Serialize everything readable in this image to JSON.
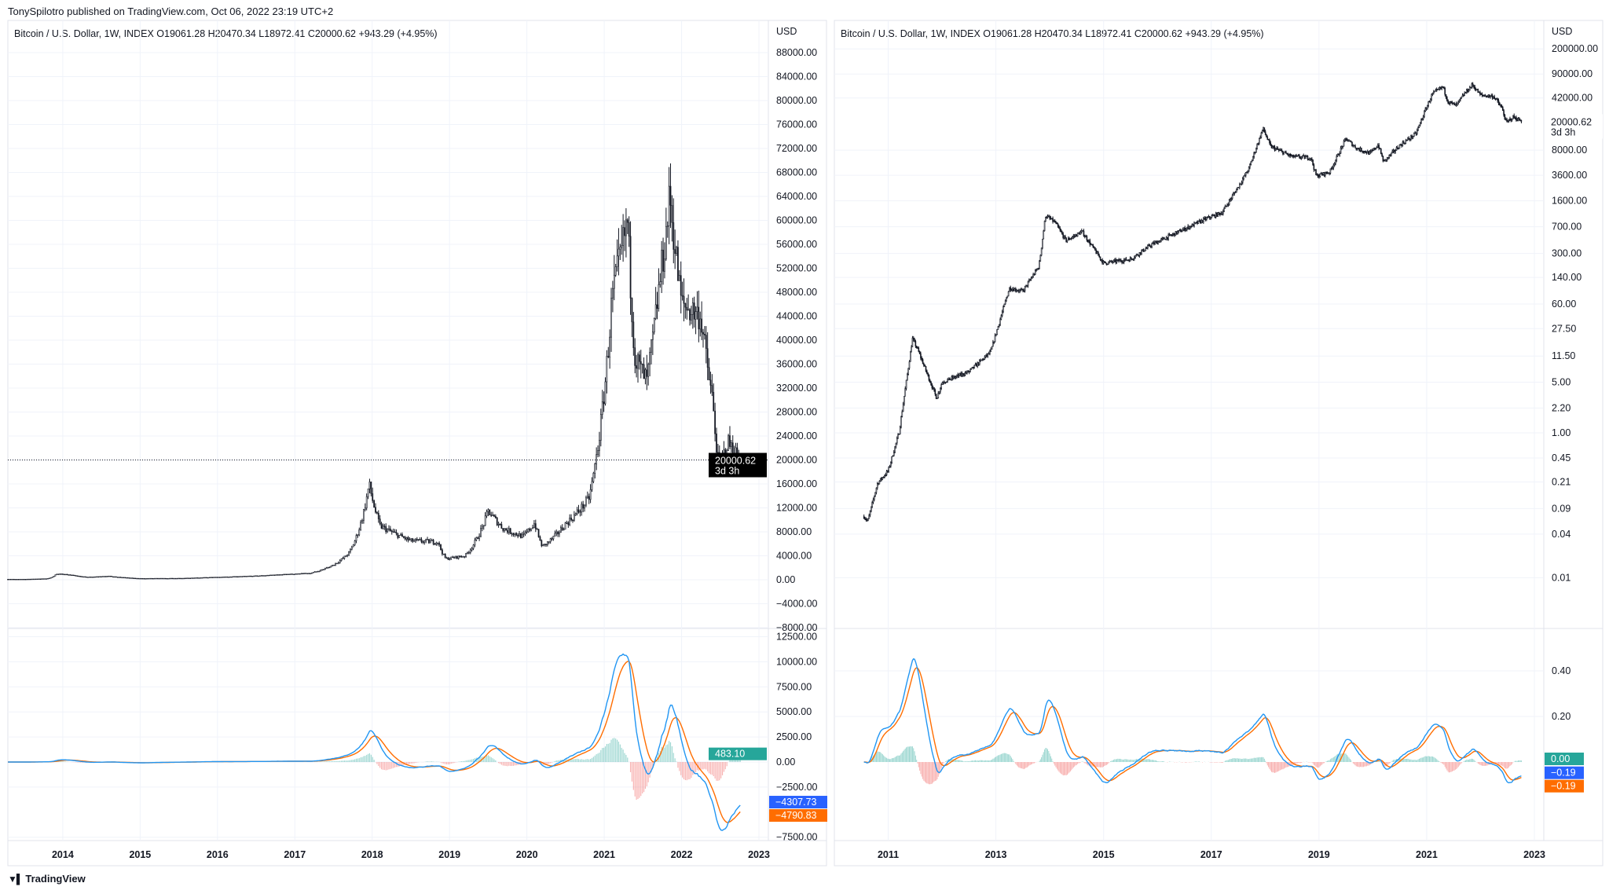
{
  "header": {
    "published": "TonySpilotro published on TradingView.com, Oct 06, 2022 23:19 UTC+2"
  },
  "footer": {
    "brand": "TradingView",
    "logo_mark": "17"
  },
  "colors": {
    "candle": "#131722",
    "macd": "#2196f3",
    "signal": "#ff6d00",
    "hist_pos": "#26a69a",
    "hist_neg": "#ef5350",
    "grid": "#f0f3fa",
    "border": "#e0e3eb",
    "last_price_bg": "#000000",
    "hist_tag": "#26a69a",
    "macd_tag": "#2962ff",
    "signal_tag": "#ff6d00"
  },
  "left": {
    "legend": "Bitcoin / U.S. Dollar, 1W, INDEX  O19061.28  H20470.34  L18972.41  C20000.62  +943.29 (+4.95%)",
    "currency": "USD",
    "last_price": "20000.62",
    "countdown": "3d 3h",
    "indicator_tags": {
      "hist": "483.10",
      "macd": "−4307.73",
      "signal": "−4790.83"
    }
  },
  "right": {
    "legend": "Bitcoin / U.S. Dollar, 1W, INDEX  O19061.28  H20470.34  L18972.41  C20000.62  +943.29 (+4.95%)",
    "currency": "USD",
    "last_price": "20000.62",
    "countdown": "3d 3h",
    "indicator_tags": {
      "hist": "0.00",
      "macd": "−0.19",
      "signal": "−0.19"
    }
  },
  "chart_data": [
    {
      "type": "candlestick",
      "title": "Bitcoin / U.S. Dollar, 1W, INDEX",
      "scale": "linear",
      "x_range": [
        2013.3,
        2022.77
      ],
      "y_ticks": [
        "88000.00",
        "84000.00",
        "80000.00",
        "76000.00",
        "72000.00",
        "68000.00",
        "64000.00",
        "60000.00",
        "56000.00",
        "52000.00",
        "48000.00",
        "44000.00",
        "40000.00",
        "36000.00",
        "32000.00",
        "28000.00",
        "24000.00",
        "20000.00",
        "16000.00",
        "12000.00",
        "8000.00",
        "4000.00",
        "0.00",
        "−4000.00",
        "−8000.00"
      ],
      "x_ticks": [
        "2014",
        "2015",
        "2016",
        "2017",
        "2018",
        "2019",
        "2020",
        "2021",
        "2022",
        "2023"
      ],
      "indicator": {
        "type": "macd",
        "y_ticks": [
          "12500.00",
          "10000.00",
          "7500.00",
          "5000.00",
          "2500.00",
          "0.00",
          "−2500.00",
          "−7500.00"
        ]
      },
      "grid": true
    },
    {
      "type": "candlestick",
      "title": "Bitcoin / U.S. Dollar, 1W, INDEX",
      "scale": "log",
      "x_range": [
        2010.55,
        2022.77
      ],
      "y_ticks": [
        "200000.00",
        "90000.00",
        "42000.00",
        "8000.00",
        "3600.00",
        "1600.00",
        "700.00",
        "300.00",
        "140.00",
        "60.00",
        "27.50",
        "11.50",
        "5.00",
        "2.20",
        "1.00",
        "0.45",
        "0.21",
        "0.09",
        "0.04",
        "0.01"
      ],
      "x_ticks": [
        "2011",
        "2013",
        "2015",
        "2017",
        "2019",
        "2021",
        "2023"
      ],
      "indicator": {
        "type": "macd",
        "y_ticks": [
          "0.40",
          "0.20"
        ]
      },
      "grid": true
    }
  ],
  "price_path": [
    [
      2010.55,
      0.07
    ],
    [
      2010.62,
      0.06
    ],
    [
      2010.8,
      0.2
    ],
    [
      2011.0,
      0.3
    ],
    [
      2011.2,
      1
    ],
    [
      2011.45,
      20
    ],
    [
      2011.55,
      14
    ],
    [
      2011.9,
      3
    ],
    [
      2012.0,
      5
    ],
    [
      2012.5,
      7
    ],
    [
      2012.9,
      13
    ],
    [
      2013.25,
      100
    ],
    [
      2013.5,
      90
    ],
    [
      2013.8,
      200
    ],
    [
      2013.92,
      1000
    ],
    [
      2014.1,
      800
    ],
    [
      2014.3,
      450
    ],
    [
      2014.6,
      600
    ],
    [
      2015.0,
      220
    ],
    [
      2015.5,
      250
    ],
    [
      2015.9,
      400
    ],
    [
      2016.5,
      650
    ],
    [
      2016.9,
      900
    ],
    [
      2017.2,
      1100
    ],
    [
      2017.5,
      2500
    ],
    [
      2017.7,
      4500
    ],
    [
      2017.96,
      16000
    ],
    [
      2018.1,
      9000
    ],
    [
      2018.5,
      6500
    ],
    [
      2018.85,
      6300
    ],
    [
      2018.95,
      3500
    ],
    [
      2019.2,
      4000
    ],
    [
      2019.5,
      11500
    ],
    [
      2019.7,
      8500
    ],
    [
      2019.95,
      7200
    ],
    [
      2020.1,
      9500
    ],
    [
      2020.2,
      5500
    ],
    [
      2020.5,
      9300
    ],
    [
      2020.8,
      13500
    ],
    [
      2020.98,
      29000
    ],
    [
      2021.1,
      47000
    ],
    [
      2021.3,
      60000
    ],
    [
      2021.4,
      37000
    ],
    [
      2021.55,
      33000
    ],
    [
      2021.7,
      48000
    ],
    [
      2021.85,
      64000
    ],
    [
      2022.0,
      46000
    ],
    [
      2022.25,
      44000
    ],
    [
      2022.4,
      30000
    ],
    [
      2022.48,
      19000
    ],
    [
      2022.6,
      23000
    ],
    [
      2022.77,
      20000
    ]
  ]
}
